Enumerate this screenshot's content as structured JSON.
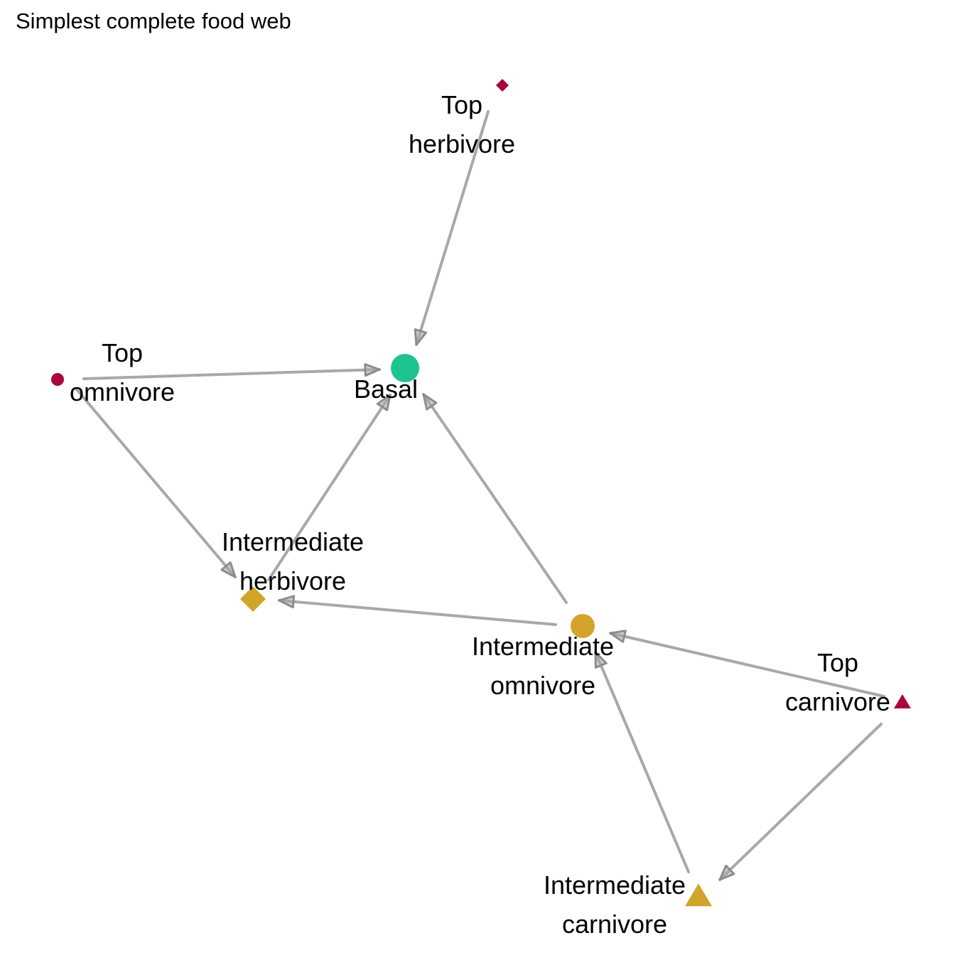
{
  "title": "Simplest complete food web",
  "colors": {
    "edge": "#a8a8a8",
    "arrowhead": "#8c8c8c",
    "basal": "#1dc490",
    "intermediate": "#d3a42c",
    "top": "#a8073e"
  },
  "nodes": [
    {
      "id": "basal",
      "label_lines": [
        "Basal"
      ],
      "level": "basal",
      "shape": "circle",
      "size": "large"
    },
    {
      "id": "int_herb",
      "label_lines": [
        "Intermediate",
        "herbivore"
      ],
      "level": "intermediate",
      "shape": "diamond",
      "size": "large"
    },
    {
      "id": "int_omni",
      "label_lines": [
        "Intermediate",
        "omnivore"
      ],
      "level": "intermediate",
      "shape": "circle",
      "size": "large"
    },
    {
      "id": "int_carn",
      "label_lines": [
        "Intermediate",
        "carnivore"
      ],
      "level": "intermediate",
      "shape": "triangle",
      "size": "large"
    },
    {
      "id": "top_herb",
      "label_lines": [
        "Top",
        "herbivore"
      ],
      "level": "top",
      "shape": "diamond",
      "size": "small"
    },
    {
      "id": "top_omni",
      "label_lines": [
        "Top",
        "omnivore"
      ],
      "level": "top",
      "shape": "circle",
      "size": "small"
    },
    {
      "id": "top_carn",
      "label_lines": [
        "Top",
        "carnivore"
      ],
      "level": "top",
      "shape": "triangle",
      "size": "small"
    }
  ],
  "edges": [
    {
      "from": "top_herb",
      "to": "basal"
    },
    {
      "from": "top_omni",
      "to": "basal"
    },
    {
      "from": "top_omni",
      "to": "int_herb"
    },
    {
      "from": "int_herb",
      "to": "basal"
    },
    {
      "from": "int_omni",
      "to": "basal"
    },
    {
      "from": "int_omni",
      "to": "int_herb"
    },
    {
      "from": "top_carn",
      "to": "int_omni"
    },
    {
      "from": "top_carn",
      "to": "int_carn"
    },
    {
      "from": "int_carn",
      "to": "int_omni"
    }
  ]
}
